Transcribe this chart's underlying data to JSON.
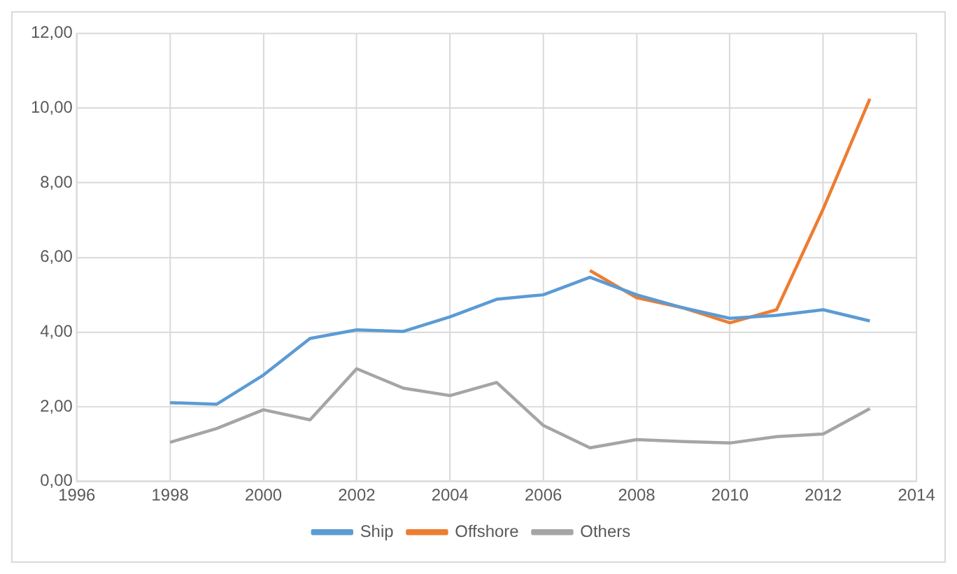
{
  "chart_data": {
    "type": "line",
    "x": [
      1998,
      1999,
      2000,
      2001,
      2002,
      2003,
      2004,
      2005,
      2006,
      2007,
      2008,
      2009,
      2010,
      2011,
      2012,
      2013
    ],
    "series": [
      {
        "name": "Ship",
        "color": "#5b9bd5",
        "values": [
          2.11,
          2.07,
          2.85,
          3.83,
          4.06,
          4.02,
          4.41,
          4.88,
          5.0,
          5.47,
          5.0,
          4.65,
          4.37,
          4.45,
          4.6,
          4.3
        ]
      },
      {
        "name": "Offshore",
        "color": "#ed7d31",
        "values": [
          null,
          null,
          null,
          null,
          null,
          null,
          null,
          null,
          null,
          5.65,
          4.92,
          4.65,
          4.25,
          4.6,
          7.3,
          10.25
        ]
      },
      {
        "name": "Others",
        "color": "#a5a5a5",
        "values": [
          1.05,
          1.42,
          1.92,
          1.65,
          3.02,
          2.5,
          2.3,
          2.65,
          1.5,
          0.9,
          1.12,
          1.07,
          1.03,
          1.2,
          1.27,
          1.95
        ]
      }
    ],
    "xlim": [
      1996,
      2014
    ],
    "xticks": [
      1996,
      1998,
      2000,
      2002,
      2004,
      2006,
      2008,
      2010,
      2012,
      2014
    ],
    "ylim": [
      0,
      12
    ],
    "yticks": [
      {
        "value": 0,
        "label": "0,00"
      },
      {
        "value": 2,
        "label": "2,00"
      },
      {
        "value": 4,
        "label": "4,00"
      },
      {
        "value": 6,
        "label": "6,00"
      },
      {
        "value": 8,
        "label": "8,00"
      },
      {
        "value": 10,
        "label": "10,00"
      },
      {
        "value": 12,
        "label": "12,00"
      }
    ],
    "grid": true,
    "legend": "bottom",
    "marker": "none",
    "line_style": "solid"
  }
}
